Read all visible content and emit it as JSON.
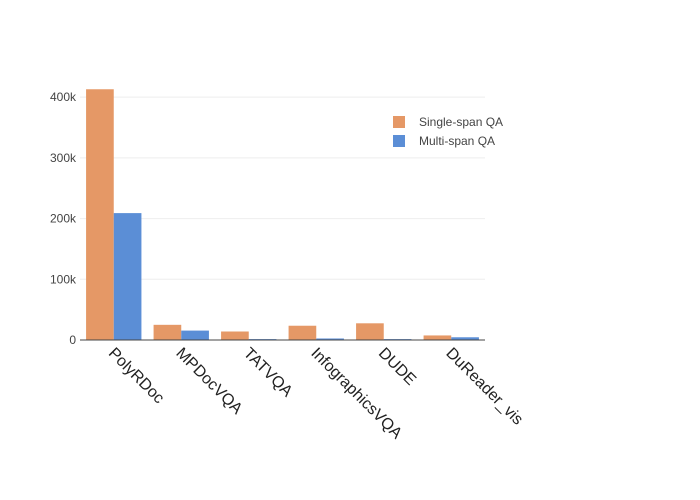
{
  "chart_data": {
    "type": "bar",
    "categories": [
      "PolyRDoc",
      "MPDocVQA",
      "TATVQA",
      "InfographicsVQA",
      "DUDE",
      "DuReader_vis"
    ],
    "series": [
      {
        "name": "Single-span QA",
        "color": "#E59866",
        "values": [
          413000,
          25000,
          14000,
          23500,
          27500,
          7500
        ]
      },
      {
        "name": "Multi-span QA",
        "color": "#5B8ED6",
        "values": [
          209000,
          15500,
          1500,
          2500,
          1500,
          4500
        ]
      }
    ],
    "yticks": [
      0,
      100000,
      200000,
      300000,
      400000
    ],
    "ytick_labels": [
      "0",
      "100k",
      "200k",
      "300k",
      "400k"
    ],
    "ylim": [
      0,
      420000
    ],
    "grid": true,
    "legend_position": "top-right"
  }
}
